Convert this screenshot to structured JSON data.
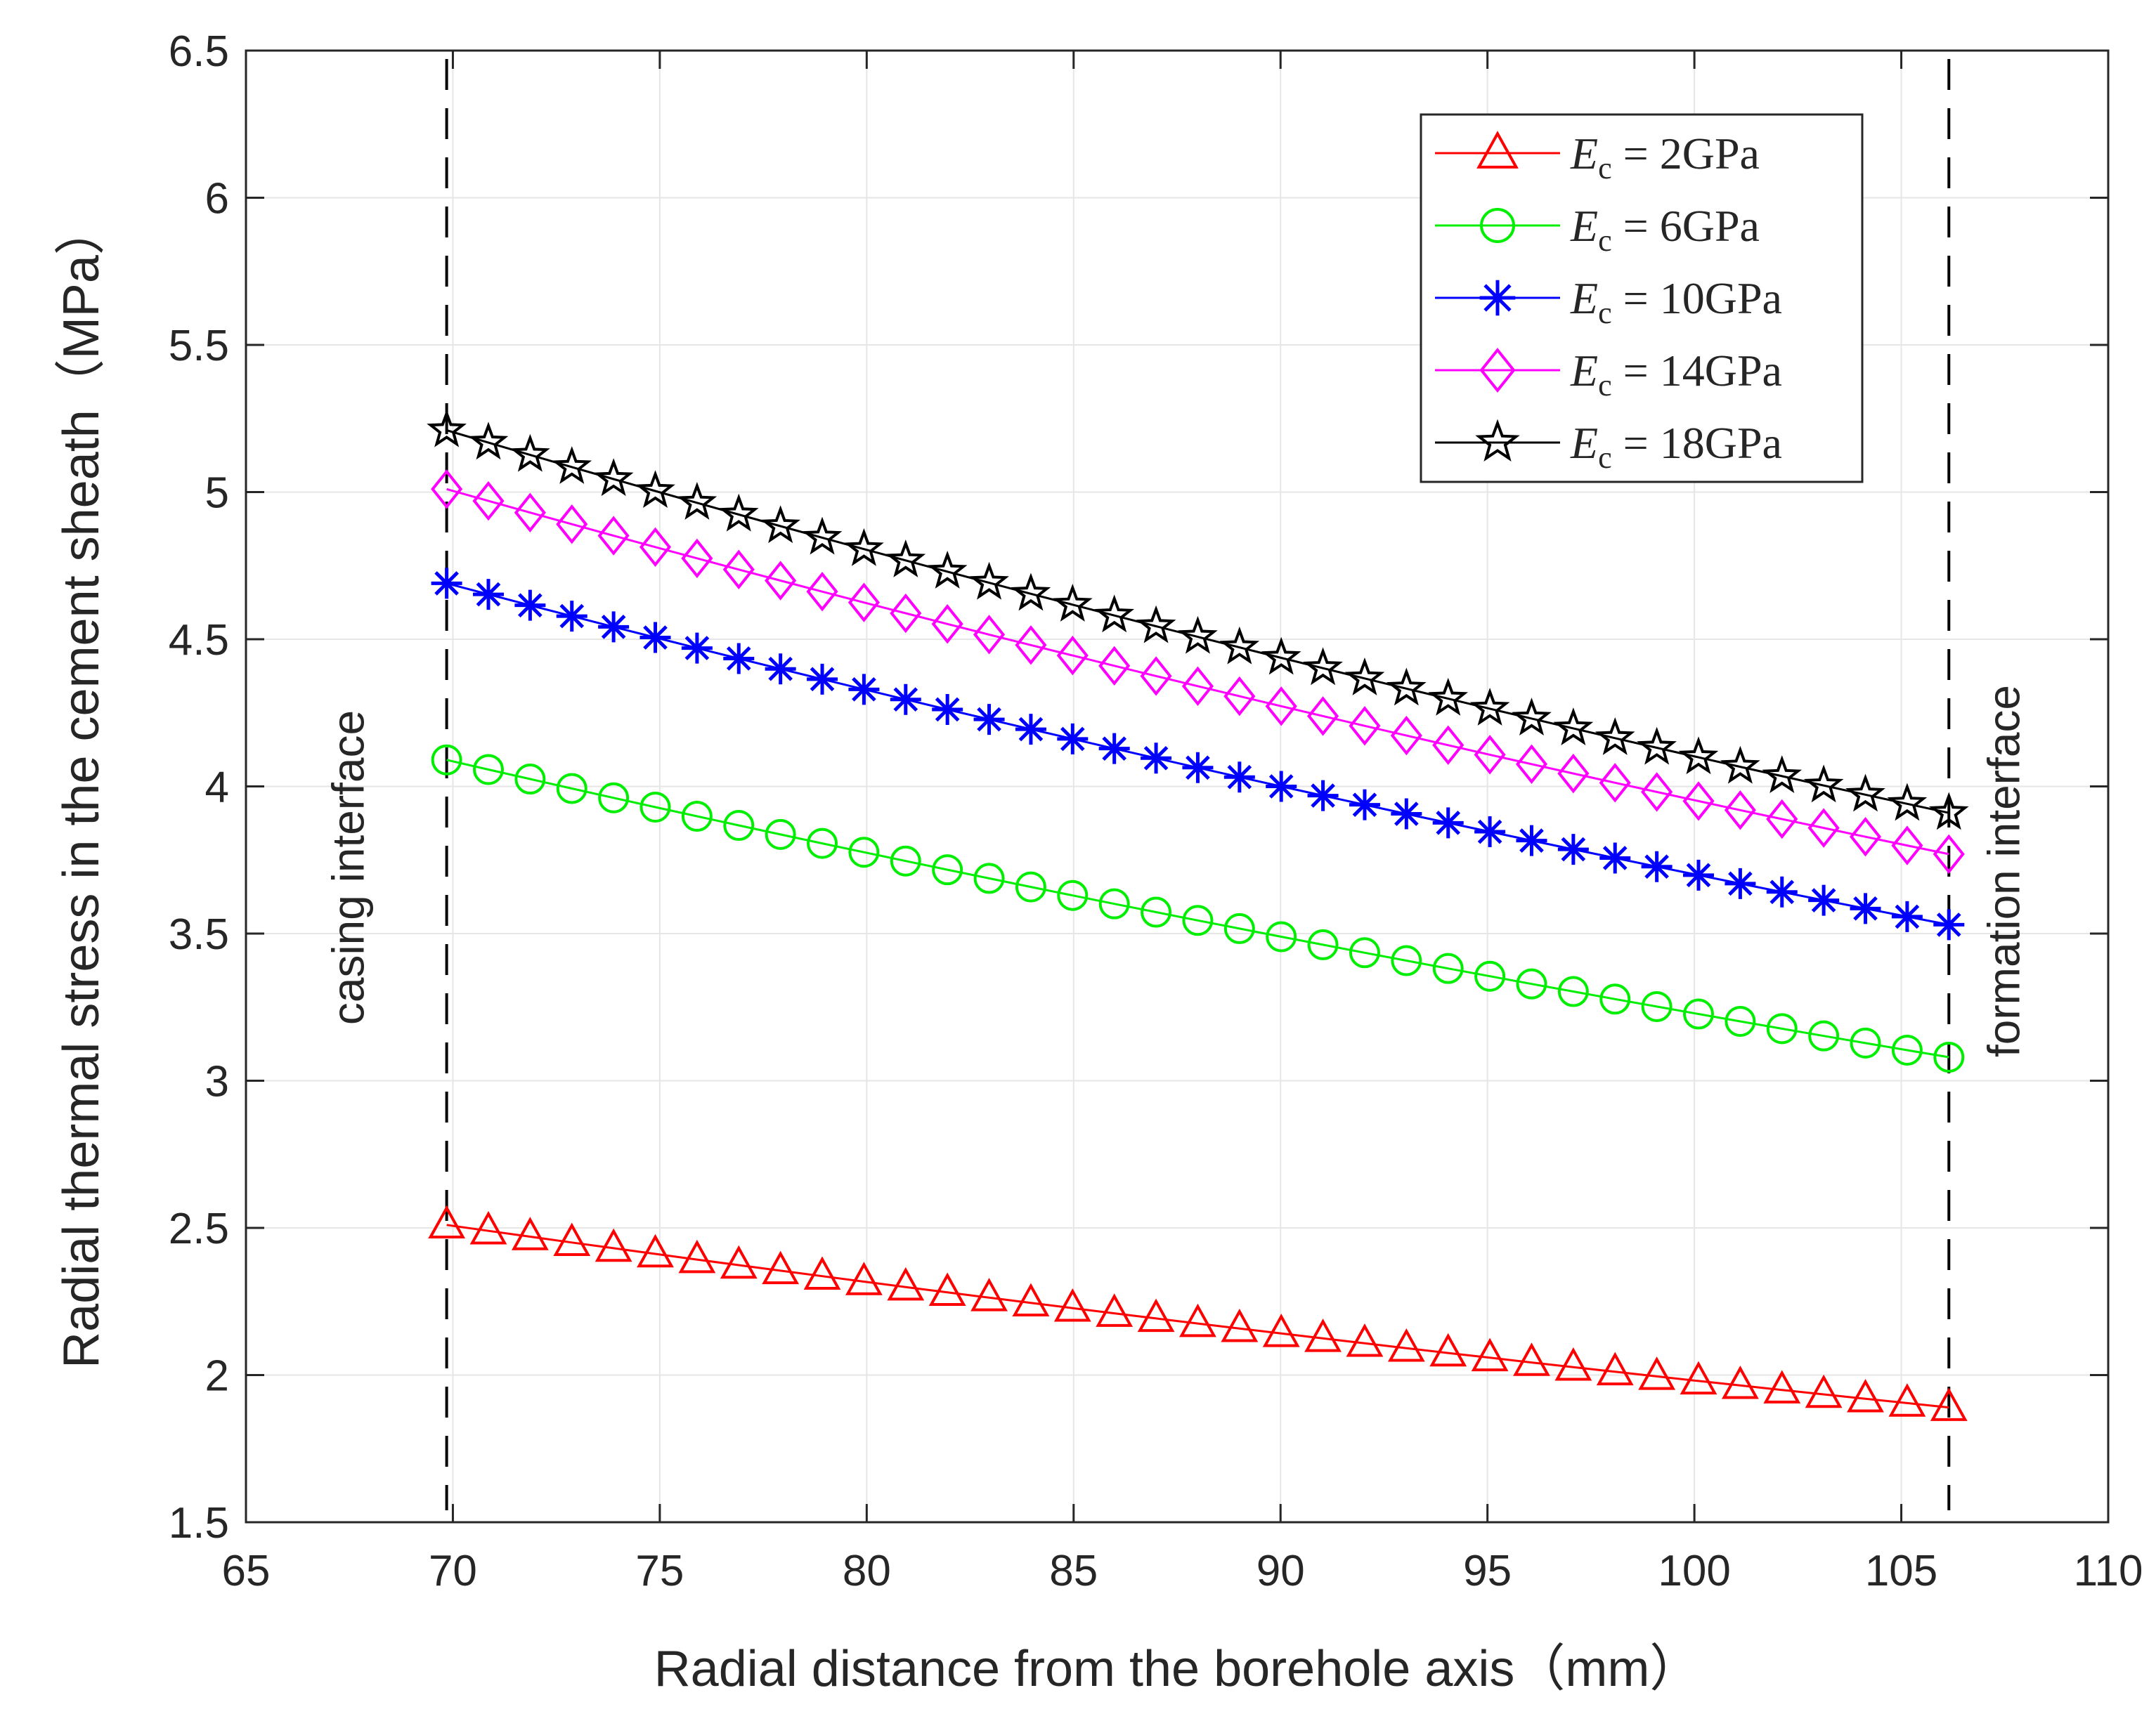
{
  "chart_data": {
    "type": "line",
    "title": "",
    "xlabel": "Radial distance from the borehole axis（mm）",
    "ylabel": "Radial thermal stress in the cement sheath（MPa）",
    "xlim": [
      65,
      110
    ],
    "ylim": [
      1.5,
      6.5
    ],
    "xticks": [
      65,
      70,
      75,
      80,
      85,
      90,
      95,
      100,
      105,
      110
    ],
    "yticks": [
      1.5,
      2,
      2.5,
      3,
      3.5,
      4,
      4.5,
      5,
      5.5,
      6,
      6.5
    ],
    "xtick_labels": [
      "65",
      "70",
      "75",
      "80",
      "85",
      "90",
      "95",
      "100",
      "105",
      "110"
    ],
    "ytick_labels": [
      "1.5",
      "2",
      "2.5",
      "3",
      "3.5",
      "4",
      "4.5",
      "5",
      "5.5",
      "6",
      "6.5"
    ],
    "grid": true,
    "legend_position": "top-right",
    "x_start": 69.85,
    "x_end": 106.15,
    "n_points": 37,
    "series": [
      {
        "name": "E_c = 2GPa",
        "legend_symbol": "E",
        "legend_sub": "c",
        "legend_value": " = 2GPa",
        "color": "#ff0000",
        "marker": "triangle",
        "y_start": 2.51,
        "y_end": 1.89
      },
      {
        "name": "E_c = 6GPa",
        "legend_symbol": "E",
        "legend_sub": "c",
        "legend_value": " = 6GPa",
        "color": "#00ee00",
        "marker": "circle",
        "y_start": 4.09,
        "y_end": 3.08
      },
      {
        "name": "E_c = 10GPa",
        "legend_symbol": "E",
        "legend_sub": "c",
        "legend_value": " = 10GPa",
        "color": "#0000ff",
        "marker": "asterisk",
        "y_start": 4.69,
        "y_end": 3.53
      },
      {
        "name": "E_c = 14GPa",
        "legend_symbol": "E",
        "legend_sub": "c",
        "legend_value": " = 14GPa",
        "color": "#ff00ff",
        "marker": "diamond",
        "y_start": 5.01,
        "y_end": 3.77
      },
      {
        "name": "E_c = 18GPa",
        "legend_symbol": "E",
        "legend_sub": "c",
        "legend_value": " = 18GPa",
        "color": "#000000",
        "marker": "star",
        "y_start": 5.21,
        "y_end": 3.91
      }
    ],
    "annotations": [
      {
        "text": "casing interface",
        "x": 69.85
      },
      {
        "text": "formation interface",
        "x": 106.15
      }
    ]
  }
}
